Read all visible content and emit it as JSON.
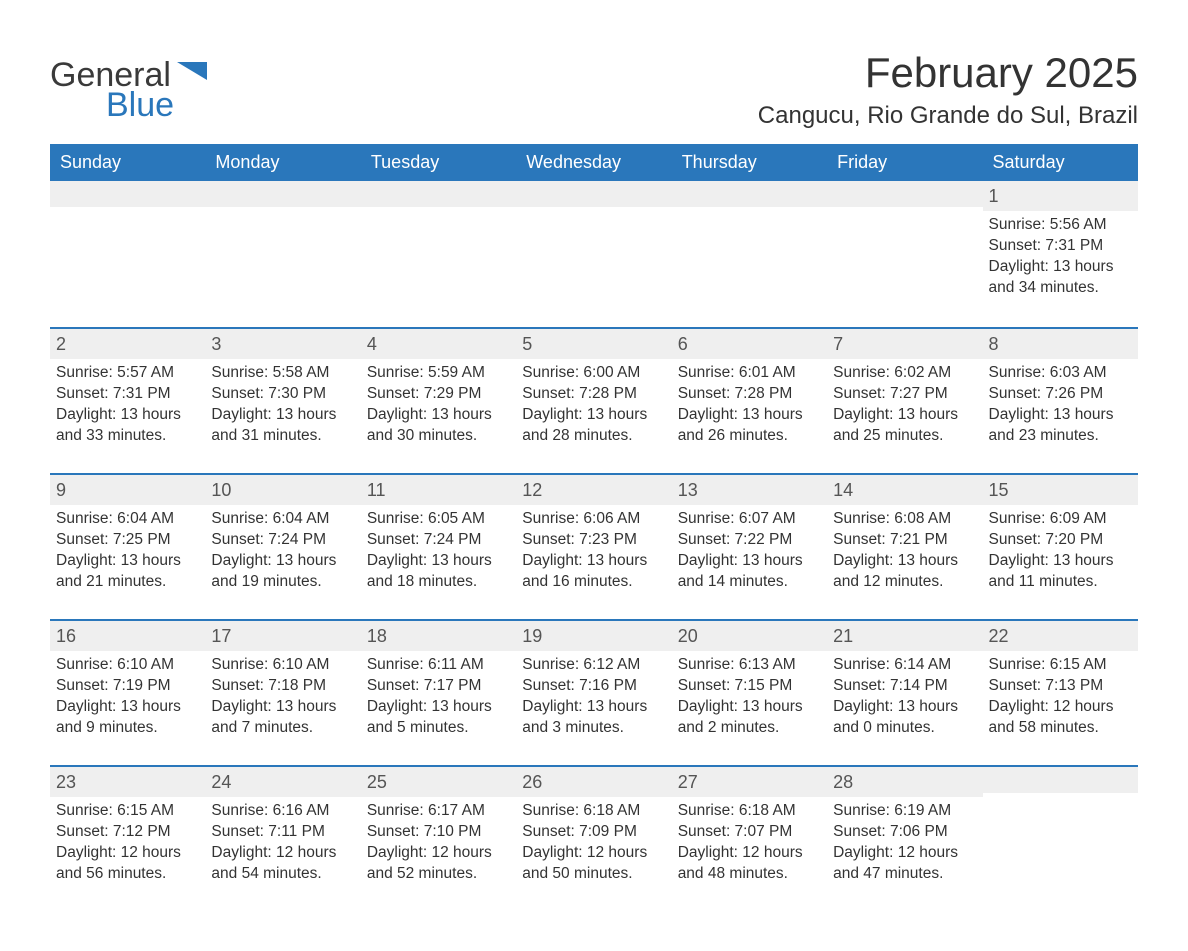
{
  "brand": {
    "name_part1": "General",
    "name_part2": "Blue",
    "shape_color": "#2a77bb",
    "text_color_dark": "#3a3a3a",
    "text_color_accent": "#2a77bb"
  },
  "title": "February 2025",
  "location": "Cangucu, Rio Grande do Sul, Brazil",
  "colors": {
    "header_bg": "#2a77bb",
    "header_text": "#ffffff",
    "band_bg": "#efefef",
    "text": "#333333",
    "rule": "#2a77bb",
    "page_bg": "#ffffff"
  },
  "typography": {
    "title_fontsize": 42,
    "location_fontsize": 24,
    "dow_fontsize": 18,
    "daynum_fontsize": 18,
    "body_fontsize": 15.5
  },
  "days_of_week": [
    "Sunday",
    "Monday",
    "Tuesday",
    "Wednesday",
    "Thursday",
    "Friday",
    "Saturday"
  ],
  "weeks": [
    [
      {
        "day": "",
        "sunrise": "",
        "sunset": "",
        "daylight": ""
      },
      {
        "day": "",
        "sunrise": "",
        "sunset": "",
        "daylight": ""
      },
      {
        "day": "",
        "sunrise": "",
        "sunset": "",
        "daylight": ""
      },
      {
        "day": "",
        "sunrise": "",
        "sunset": "",
        "daylight": ""
      },
      {
        "day": "",
        "sunrise": "",
        "sunset": "",
        "daylight": ""
      },
      {
        "day": "",
        "sunrise": "",
        "sunset": "",
        "daylight": ""
      },
      {
        "day": "1",
        "sunrise": "Sunrise: 5:56 AM",
        "sunset": "Sunset: 7:31 PM",
        "daylight": "Daylight: 13 hours and 34 minutes."
      }
    ],
    [
      {
        "day": "2",
        "sunrise": "Sunrise: 5:57 AM",
        "sunset": "Sunset: 7:31 PM",
        "daylight": "Daylight: 13 hours and 33 minutes."
      },
      {
        "day": "3",
        "sunrise": "Sunrise: 5:58 AM",
        "sunset": "Sunset: 7:30 PM",
        "daylight": "Daylight: 13 hours and 31 minutes."
      },
      {
        "day": "4",
        "sunrise": "Sunrise: 5:59 AM",
        "sunset": "Sunset: 7:29 PM",
        "daylight": "Daylight: 13 hours and 30 minutes."
      },
      {
        "day": "5",
        "sunrise": "Sunrise: 6:00 AM",
        "sunset": "Sunset: 7:28 PM",
        "daylight": "Daylight: 13 hours and 28 minutes."
      },
      {
        "day": "6",
        "sunrise": "Sunrise: 6:01 AM",
        "sunset": "Sunset: 7:28 PM",
        "daylight": "Daylight: 13 hours and 26 minutes."
      },
      {
        "day": "7",
        "sunrise": "Sunrise: 6:02 AM",
        "sunset": "Sunset: 7:27 PM",
        "daylight": "Daylight: 13 hours and 25 minutes."
      },
      {
        "day": "8",
        "sunrise": "Sunrise: 6:03 AM",
        "sunset": "Sunset: 7:26 PM",
        "daylight": "Daylight: 13 hours and 23 minutes."
      }
    ],
    [
      {
        "day": "9",
        "sunrise": "Sunrise: 6:04 AM",
        "sunset": "Sunset: 7:25 PM",
        "daylight": "Daylight: 13 hours and 21 minutes."
      },
      {
        "day": "10",
        "sunrise": "Sunrise: 6:04 AM",
        "sunset": "Sunset: 7:24 PM",
        "daylight": "Daylight: 13 hours and 19 minutes."
      },
      {
        "day": "11",
        "sunrise": "Sunrise: 6:05 AM",
        "sunset": "Sunset: 7:24 PM",
        "daylight": "Daylight: 13 hours and 18 minutes."
      },
      {
        "day": "12",
        "sunrise": "Sunrise: 6:06 AM",
        "sunset": "Sunset: 7:23 PM",
        "daylight": "Daylight: 13 hours and 16 minutes."
      },
      {
        "day": "13",
        "sunrise": "Sunrise: 6:07 AM",
        "sunset": "Sunset: 7:22 PM",
        "daylight": "Daylight: 13 hours and 14 minutes."
      },
      {
        "day": "14",
        "sunrise": "Sunrise: 6:08 AM",
        "sunset": "Sunset: 7:21 PM",
        "daylight": "Daylight: 13 hours and 12 minutes."
      },
      {
        "day": "15",
        "sunrise": "Sunrise: 6:09 AM",
        "sunset": "Sunset: 7:20 PM",
        "daylight": "Daylight: 13 hours and 11 minutes."
      }
    ],
    [
      {
        "day": "16",
        "sunrise": "Sunrise: 6:10 AM",
        "sunset": "Sunset: 7:19 PM",
        "daylight": "Daylight: 13 hours and 9 minutes."
      },
      {
        "day": "17",
        "sunrise": "Sunrise: 6:10 AM",
        "sunset": "Sunset: 7:18 PM",
        "daylight": "Daylight: 13 hours and 7 minutes."
      },
      {
        "day": "18",
        "sunrise": "Sunrise: 6:11 AM",
        "sunset": "Sunset: 7:17 PM",
        "daylight": "Daylight: 13 hours and 5 minutes."
      },
      {
        "day": "19",
        "sunrise": "Sunrise: 6:12 AM",
        "sunset": "Sunset: 7:16 PM",
        "daylight": "Daylight: 13 hours and 3 minutes."
      },
      {
        "day": "20",
        "sunrise": "Sunrise: 6:13 AM",
        "sunset": "Sunset: 7:15 PM",
        "daylight": "Daylight: 13 hours and 2 minutes."
      },
      {
        "day": "21",
        "sunrise": "Sunrise: 6:14 AM",
        "sunset": "Sunset: 7:14 PM",
        "daylight": "Daylight: 13 hours and 0 minutes."
      },
      {
        "day": "22",
        "sunrise": "Sunrise: 6:15 AM",
        "sunset": "Sunset: 7:13 PM",
        "daylight": "Daylight: 12 hours and 58 minutes."
      }
    ],
    [
      {
        "day": "23",
        "sunrise": "Sunrise: 6:15 AM",
        "sunset": "Sunset: 7:12 PM",
        "daylight": "Daylight: 12 hours and 56 minutes."
      },
      {
        "day": "24",
        "sunrise": "Sunrise: 6:16 AM",
        "sunset": "Sunset: 7:11 PM",
        "daylight": "Daylight: 12 hours and 54 minutes."
      },
      {
        "day": "25",
        "sunrise": "Sunrise: 6:17 AM",
        "sunset": "Sunset: 7:10 PM",
        "daylight": "Daylight: 12 hours and 52 minutes."
      },
      {
        "day": "26",
        "sunrise": "Sunrise: 6:18 AM",
        "sunset": "Sunset: 7:09 PM",
        "daylight": "Daylight: 12 hours and 50 minutes."
      },
      {
        "day": "27",
        "sunrise": "Sunrise: 6:18 AM",
        "sunset": "Sunset: 7:07 PM",
        "daylight": "Daylight: 12 hours and 48 minutes."
      },
      {
        "day": "28",
        "sunrise": "Sunrise: 6:19 AM",
        "sunset": "Sunset: 7:06 PM",
        "daylight": "Daylight: 12 hours and 47 minutes."
      },
      {
        "day": "",
        "sunrise": "",
        "sunset": "",
        "daylight": ""
      }
    ]
  ]
}
